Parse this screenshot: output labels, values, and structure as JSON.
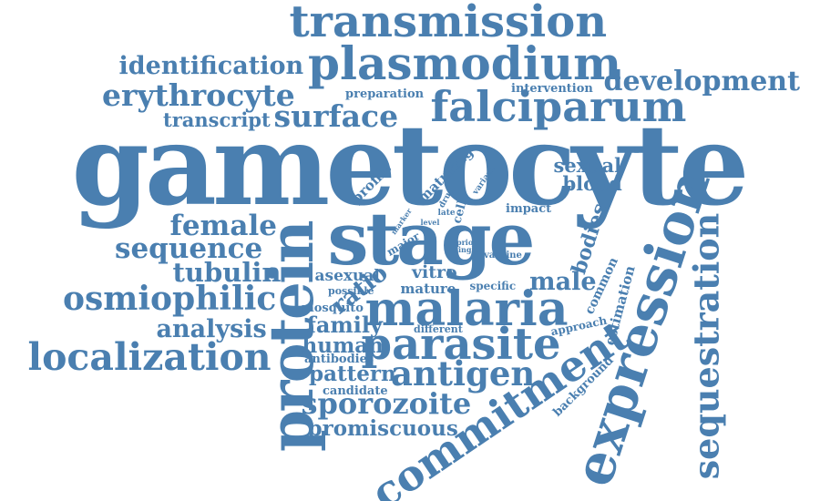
{
  "cloud": {
    "color": "#4a7fb0",
    "background": "#ffffff",
    "words": [
      "transmission",
      "plasmodium",
      "identification",
      "erythrocyte",
      "development",
      "falciparum",
      "surface",
      "transcript",
      "preparation",
      "intervention",
      "gametocyte",
      "stage",
      "protein",
      "expression",
      "sequestration",
      "commitment",
      "female",
      "sequence",
      "tubulin",
      "osmiophilic",
      "analysis",
      "localization",
      "malaria",
      "parasite",
      "antigen",
      "sporozoite",
      "promiscuous",
      "sexual",
      "blood",
      "bodies",
      "male",
      "ratio",
      "vitro",
      "asexual",
      "mature",
      "specific",
      "family",
      "human",
      "pattern",
      "antibodies",
      "candidate",
      "mosquito",
      "possible",
      "different",
      "approach",
      "estimation",
      "common",
      "background",
      "profile",
      "maturing",
      "drug",
      "variant",
      "marker",
      "level",
      "major",
      "late",
      "cell",
      "impact",
      "prior",
      "single",
      "vaccine"
    ]
  }
}
